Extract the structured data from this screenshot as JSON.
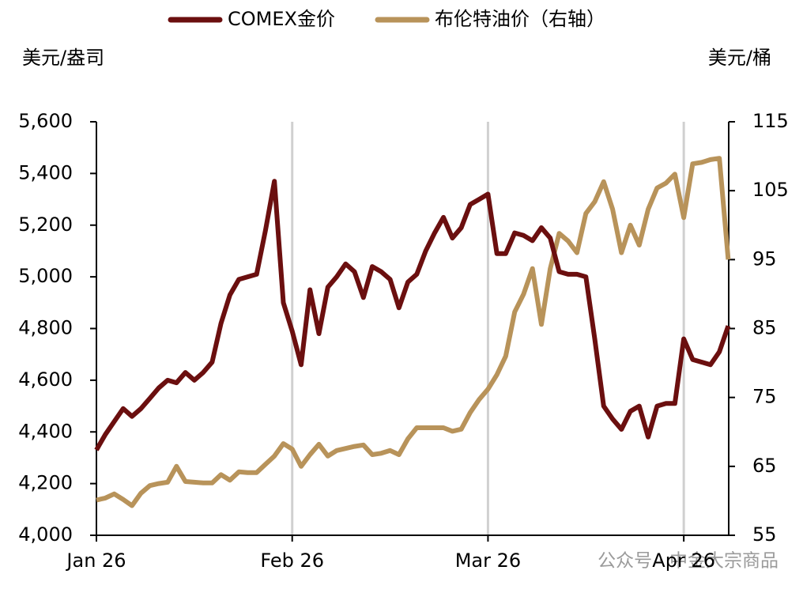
{
  "chart_data": {
    "type": "line",
    "y_label": "美元/盎司",
    "y2_label": "美元/桶",
    "watermark": "公众号 · 中金大宗商品",
    "categories": [
      "Jan 26",
      null,
      null,
      null,
      null,
      null,
      null,
      null,
      null,
      null,
      null,
      null,
      null,
      null,
      null,
      null,
      null,
      null,
      null,
      null,
      null,
      null,
      "Feb 26",
      null,
      null,
      null,
      null,
      null,
      null,
      null,
      null,
      null,
      null,
      null,
      null,
      null,
      null,
      null,
      null,
      null,
      null,
      null,
      null,
      null,
      "Mar 26",
      null,
      null,
      null,
      null,
      null,
      null,
      null,
      null,
      null,
      null,
      null,
      null,
      null,
      null,
      null,
      null,
      null,
      null,
      null,
      null,
      null,
      "Apr 26",
      null,
      null,
      null,
      null,
      null
    ],
    "series": [
      {
        "name": "COMEX金价",
        "color": "#6b0f0f",
        "axis": "y",
        "values": [
          4330,
          4390,
          4440,
          4490,
          4460,
          4490,
          4530,
          4570,
          4600,
          4590,
          4630,
          4600,
          4630,
          4670,
          4820,
          4930,
          4990,
          5000,
          5010,
          5180,
          5370,
          4900,
          4790,
          4660,
          4950,
          4780,
          4960,
          5000,
          5050,
          5020,
          4920,
          5040,
          5020,
          4990,
          4880,
          4980,
          5010,
          5100,
          5170,
          5230,
          5150,
          5190,
          5280,
          5300,
          5320,
          5090,
          5090,
          5170,
          5160,
          5140,
          5190,
          5150,
          5020,
          5010,
          5010,
          5000,
          4760,
          4500,
          4450,
          4410,
          4480,
          4500,
          4380,
          4500,
          4510,
          4510,
          4760,
          4680,
          4670,
          4660,
          4710,
          4810
        ]
      },
      {
        "name": "布伦特油价（右轴）",
        "color": "#b8935a",
        "axis": "y2",
        "values": [
          60.1,
          60.4,
          61.0,
          60.2,
          59.3,
          61.1,
          62.2,
          62.5,
          62.7,
          65.0,
          62.8,
          62.7,
          62.6,
          62.6,
          63.8,
          63.0,
          64.2,
          64.1,
          64.1,
          65.3,
          66.5,
          68.3,
          67.5,
          65.0,
          66.7,
          68.2,
          66.5,
          67.3,
          67.6,
          67.9,
          68.1,
          66.7,
          66.9,
          67.3,
          66.7,
          69.0,
          70.6,
          70.6,
          70.6,
          70.6,
          70.1,
          70.4,
          72.8,
          74.7,
          76.2,
          78.3,
          81.0,
          87.4,
          90.0,
          93.7,
          85.6,
          93.7,
          98.8,
          97.7,
          96.0,
          101.7,
          103.4,
          106.3,
          102.3,
          96.0,
          100.0,
          97.1,
          102.3,
          105.4,
          106.1,
          107.4,
          101.1,
          108.9,
          109.1,
          109.5,
          109.7,
          95.0
        ]
      }
    ],
    "ylim": [
      4000,
      5600
    ],
    "yticks": [
      {
        "value": 4000,
        "label": "4,000"
      },
      {
        "value": 4200,
        "label": "4,200"
      },
      {
        "value": 4400,
        "label": "4,400"
      },
      {
        "value": 4600,
        "label": "4,600"
      },
      {
        "value": 4800,
        "label": "4,800"
      },
      {
        "value": 5000,
        "label": "5,000"
      },
      {
        "value": 5200,
        "label": "5,200"
      },
      {
        "value": 5400,
        "label": "5,400"
      },
      {
        "value": 5600,
        "label": "5,600"
      }
    ],
    "y2lim": [
      55,
      115
    ],
    "y2ticks": [
      55,
      65,
      75,
      85,
      95,
      105,
      115
    ],
    "grid": "x",
    "legend": "top"
  }
}
